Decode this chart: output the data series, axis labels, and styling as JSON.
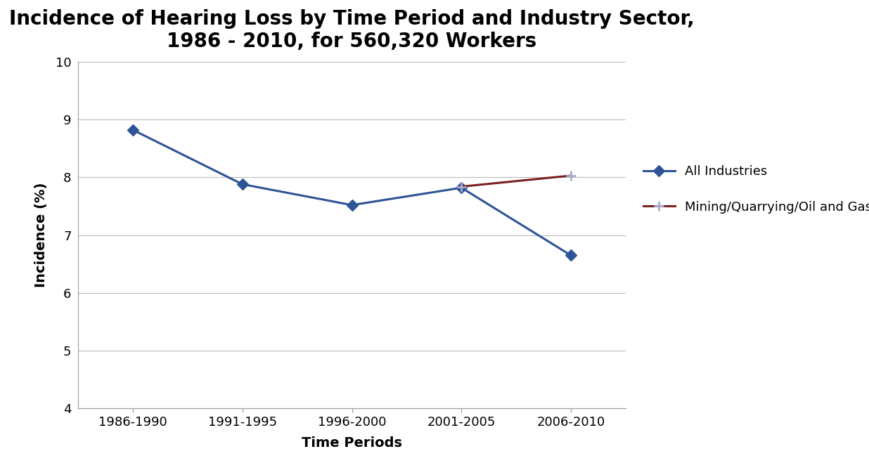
{
  "title": "Incidence of Hearing Loss by Time Period and Industry Sector,\n1986 - 2010, for 560,320 Workers",
  "xlabel": "Time Periods",
  "ylabel": "Incidence (%)",
  "categories": [
    "1986-1990",
    "1991-1995",
    "1996-2000",
    "2001-2005",
    "2006-2010"
  ],
  "all_industries": [
    8.82,
    7.88,
    7.52,
    7.82,
    6.65
  ],
  "mining": [
    null,
    null,
    null,
    7.84,
    8.03
  ],
  "all_industries_color": "#2F5496",
  "mining_color": "#7B2020",
  "mining_marker_color": "#AAAACC",
  "ylim": [
    4,
    10
  ],
  "yticks": [
    4,
    5,
    6,
    7,
    8,
    9,
    10
  ],
  "legend_labels": [
    "All Industries",
    "Mining/Quarrying/Oil and Gas"
  ],
  "title_fontsize": 20,
  "label_fontsize": 14,
  "tick_fontsize": 13,
  "legend_fontsize": 13,
  "background_color": "#FFFFFF",
  "grid_color": "#BBBBBB",
  "border_color": "#999999"
}
